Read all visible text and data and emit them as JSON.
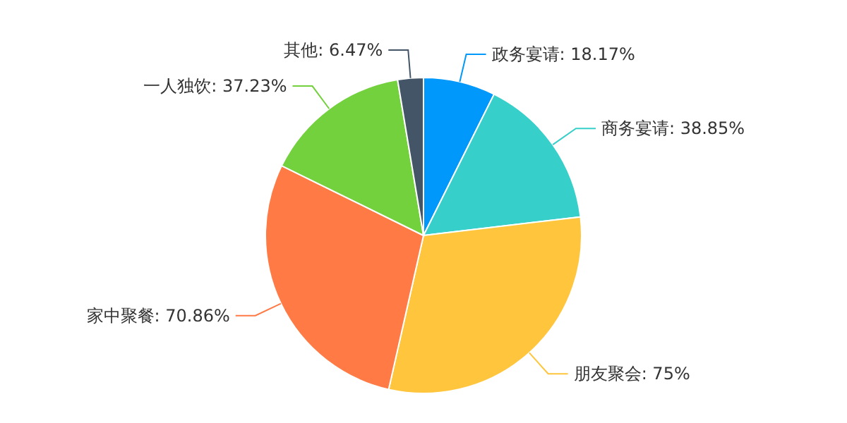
{
  "chart_data": {
    "type": "pie",
    "categories": [
      "政务宴请",
      "商务宴请",
      "朋友聚会",
      "家中聚餐",
      "一人独饮",
      "其他"
    ],
    "values": [
      18.17,
      38.85,
      75,
      70.86,
      37.23,
      6.47
    ],
    "value_labels": [
      "18.17%",
      "38.85%",
      "75%",
      "70.86%",
      "37.23%",
      "6.47%"
    ],
    "colors": [
      "#0098fa",
      "#36cfc9",
      "#ffc53d",
      "#ff7a45",
      "#73d13d",
      "#435566"
    ]
  }
}
